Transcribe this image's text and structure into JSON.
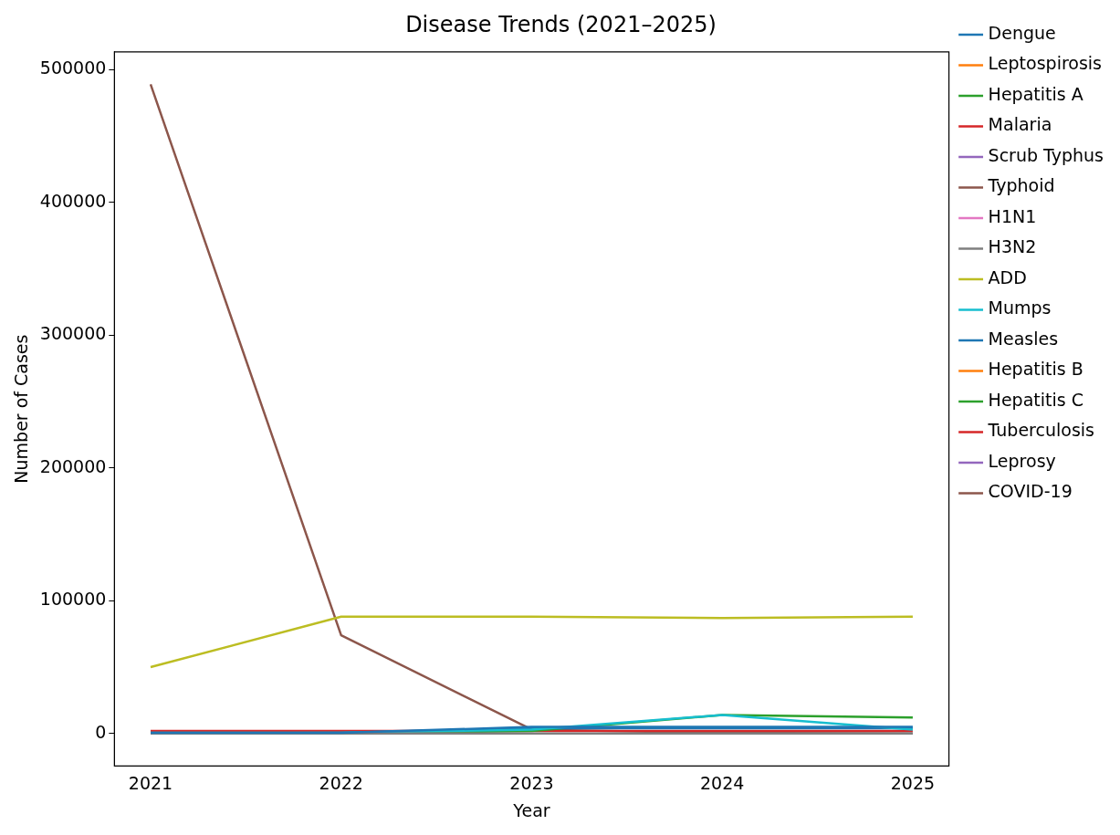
{
  "chart_data": {
    "type": "line",
    "title": "Disease Trends (2021–2025)",
    "xlabel": "Year",
    "ylabel": "Number of Cases",
    "x": [
      2021,
      2022,
      2023,
      2024,
      2025
    ],
    "xlim": [
      2020.81,
      2025.19
    ],
    "xticks": [
      2021,
      2022,
      2023,
      2024,
      2025
    ],
    "ylim": [
      -24450,
      513450
    ],
    "yticks": [
      0,
      100000,
      200000,
      300000,
      400000,
      500000
    ],
    "grid": false,
    "legend": "right",
    "marker": "none",
    "line_style": "solid",
    "series": [
      {
        "name": "Dengue",
        "color": "#1f77b4",
        "values": [
          500,
          500,
          5000,
          5000,
          5000
        ]
      },
      {
        "name": "Leptospirosis",
        "color": "#ff7f0e",
        "values": [
          null,
          null,
          null,
          null,
          null
        ]
      },
      {
        "name": "Hepatitis A",
        "color": "#2ca02c",
        "values": [
          null,
          null,
          null,
          null,
          null
        ]
      },
      {
        "name": "Malaria",
        "color": "#d62728",
        "values": [
          null,
          null,
          null,
          null,
          null
        ]
      },
      {
        "name": "Scrub Typhus",
        "color": "#9467bd",
        "values": [
          null,
          null,
          null,
          null,
          null
        ]
      },
      {
        "name": "Typhoid",
        "color": "#8c564b",
        "values": [
          null,
          null,
          null,
          null,
          null
        ]
      },
      {
        "name": "H1N1",
        "color": "#e377c2",
        "values": [
          null,
          null,
          null,
          null,
          null
        ]
      },
      {
        "name": "H3N2",
        "color": "#7f7f7f",
        "values": [
          0,
          0,
          0,
          0,
          0
        ]
      },
      {
        "name": "ADD",
        "color": "#bcbd22",
        "values": [
          50000,
          88000,
          88000,
          87000,
          88000
        ]
      },
      {
        "name": "Mumps",
        "color": "#17becf",
        "values": [
          500,
          500,
          3000,
          14000,
          3000
        ]
      },
      {
        "name": "Measles",
        "color": "#1f77b4",
        "values": [
          0,
          500,
          4000,
          4000,
          4000
        ]
      },
      {
        "name": "Hepatitis B",
        "color": "#ff7f0e",
        "values": [
          null,
          null,
          null,
          null,
          null
        ]
      },
      {
        "name": "Hepatitis C",
        "color": "#2ca02c",
        "values": [
          0,
          0,
          2000,
          14000,
          12000
        ]
      },
      {
        "name": "Tuberculosis",
        "color": "#d62728",
        "values": [
          2000,
          2000,
          2000,
          2000,
          2000
        ]
      },
      {
        "name": "Leprosy",
        "color": "#9467bd",
        "values": [
          null,
          null,
          null,
          null,
          null
        ]
      },
      {
        "name": "COVID-19",
        "color": "#8c564b",
        "values": [
          489000,
          74000,
          3000,
          500,
          0
        ]
      }
    ]
  }
}
